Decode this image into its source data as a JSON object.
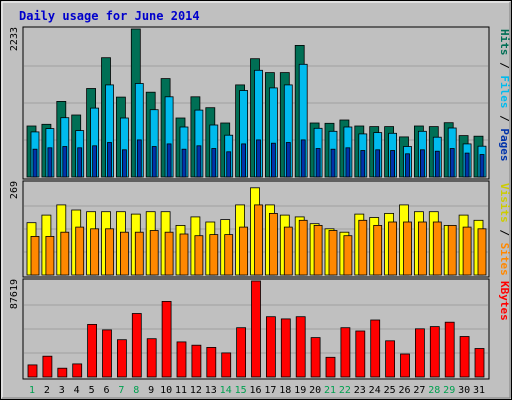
{
  "title": "Daily usage for June 2014",
  "colors": {
    "background": "#c0c0c0",
    "title": "#0000cc",
    "hits": "#006f55",
    "files": "#00bbee",
    "pages": "#0033aa",
    "visits": "#ffff00",
    "sites": "#ff8800",
    "kbytes": "#ff0000",
    "weekend_label": "#00a050",
    "weekday_label": "#000000"
  },
  "chart_data": [
    {
      "type": "bar",
      "panel": "pages-files-hits",
      "ymax_label": "2233",
      "legend": [
        "Pages",
        "Files",
        "Hits"
      ],
      "categories": [
        "1",
        "2",
        "3",
        "4",
        "5",
        "6",
        "7",
        "8",
        "9",
        "10",
        "11",
        "12",
        "13",
        "14",
        "15",
        "16",
        "17",
        "18",
        "19",
        "20",
        "21",
        "22",
        "23",
        "24",
        "25",
        "26",
        "27",
        "28",
        "29",
        "30",
        "31"
      ],
      "weekend_days": [
        1,
        7,
        8,
        14,
        15,
        21,
        22,
        28,
        29
      ],
      "series": [
        {
          "name": "Hits",
          "values": [
            770,
            795,
            1140,
            935,
            1335,
            1800,
            1205,
            2233,
            1280,
            1485,
            890,
            1210,
            1045,
            815,
            1390,
            1785,
            1575,
            1575,
            1985,
            815,
            810,
            860,
            770,
            760,
            760,
            605,
            770,
            760,
            820,
            625,
            615
          ]
        },
        {
          "name": "Files",
          "values": [
            680,
            730,
            895,
            700,
            1040,
            1390,
            890,
            1410,
            1015,
            1210,
            755,
            1010,
            785,
            630,
            1305,
            1610,
            1345,
            1390,
            1700,
            735,
            690,
            755,
            650,
            670,
            660,
            460,
            690,
            600,
            740,
            500,
            465
          ]
        },
        {
          "name": "Pages",
          "values": [
            420,
            440,
            460,
            440,
            470,
            520,
            410,
            560,
            460,
            500,
            420,
            470,
            430,
            380,
            500,
            560,
            510,
            520,
            560,
            430,
            420,
            440,
            400,
            410,
            400,
            350,
            410,
            390,
            430,
            360,
            340
          ]
        }
      ]
    },
    {
      "type": "bar",
      "panel": "sites-visits",
      "ymax_label": "269",
      "legend": [
        "Sites",
        "Visits"
      ],
      "categories": [
        "1",
        "2",
        "3",
        "4",
        "5",
        "6",
        "7",
        "8",
        "9",
        "10",
        "11",
        "12",
        "13",
        "14",
        "15",
        "16",
        "17",
        "18",
        "19",
        "20",
        "21",
        "22",
        "23",
        "24",
        "25",
        "26",
        "27",
        "28",
        "29",
        "30",
        "31"
      ],
      "series": [
        {
          "name": "Visits",
          "values": [
            153,
            175,
            205,
            190,
            185,
            185,
            185,
            178,
            185,
            185,
            145,
            170,
            155,
            162,
            205,
            255,
            205,
            175,
            170,
            150,
            135,
            125,
            178,
            168,
            180,
            205,
            185,
            185,
            145,
            175,
            160
          ]
        },
        {
          "name": "Sites",
          "values": [
            113,
            113,
            125,
            140,
            135,
            135,
            125,
            125,
            130,
            125,
            120,
            115,
            118,
            118,
            140,
            205,
            180,
            140,
            160,
            145,
            130,
            115,
            160,
            145,
            155,
            155,
            155,
            155,
            145,
            140,
            135
          ]
        }
      ]
    },
    {
      "type": "bar",
      "panel": "kbytes",
      "ymax_label": "87619",
      "legend": [
        "KBytes"
      ],
      "categories": [
        "1",
        "2",
        "3",
        "4",
        "5",
        "6",
        "7",
        "8",
        "9",
        "10",
        "11",
        "12",
        "13",
        "14",
        "15",
        "16",
        "17",
        "18",
        "19",
        "20",
        "21",
        "22",
        "23",
        "24",
        "25",
        "26",
        "27",
        "28",
        "29",
        "30",
        "31"
      ],
      "series": [
        {
          "name": "KBytes",
          "values": [
            11000,
            19000,
            8000,
            12000,
            48000,
            43000,
            34000,
            58000,
            35000,
            69000,
            32000,
            29000,
            27000,
            22000,
            45000,
            87619,
            55000,
            53000,
            55000,
            36000,
            18000,
            45000,
            42000,
            52000,
            33000,
            21000,
            44000,
            46000,
            50000,
            37000,
            26000
          ]
        }
      ]
    }
  ]
}
